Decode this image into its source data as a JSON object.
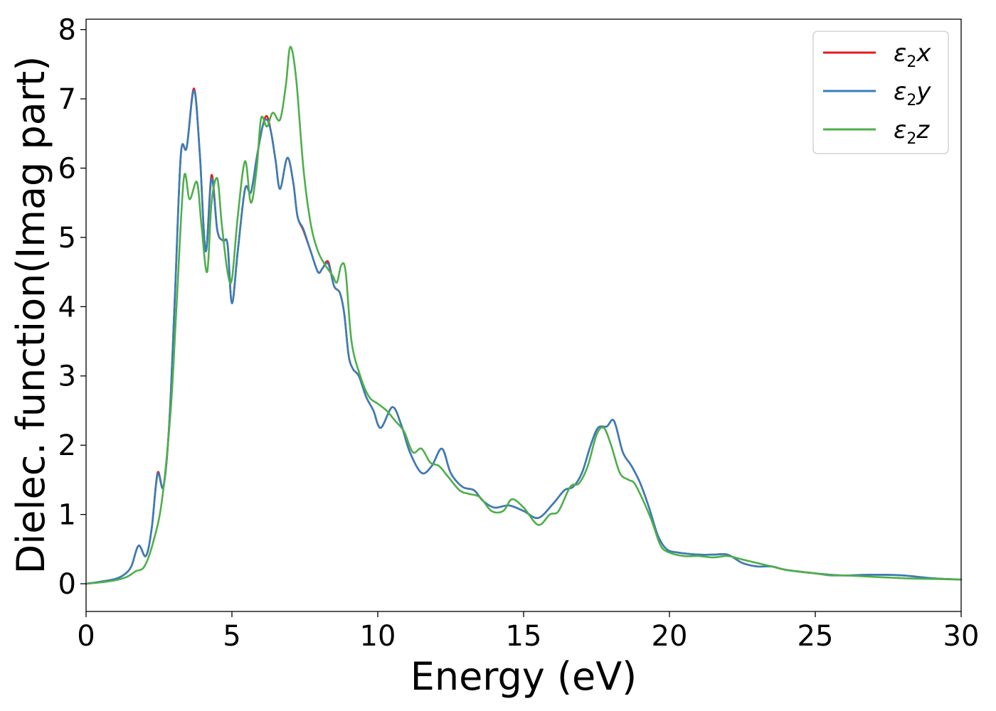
{
  "chart_data": {
    "type": "line",
    "xlabel": "Energy (eV)",
    "ylabel": "Dielec. function(Imag part)",
    "xlim": [
      0,
      30
    ],
    "ylim": [
      -0.4,
      8.15
    ],
    "xticks": [
      0,
      5,
      10,
      15,
      20,
      25,
      30
    ],
    "yticks": [
      0,
      1,
      2,
      3,
      4,
      5,
      6,
      7,
      8
    ],
    "grid": false,
    "legend_position": "top-right",
    "series": [
      {
        "name": "ε2x",
        "name_base": "ε",
        "name_sub": "2",
        "name_suffix": "x",
        "color": "#e41a1c",
        "x": [
          0,
          0.5,
          1.0,
          1.3,
          1.55,
          1.8,
          2.05,
          2.25,
          2.45,
          2.65,
          2.85,
          3.05,
          3.25,
          3.45,
          3.7,
          3.9,
          4.1,
          4.3,
          4.5,
          4.7,
          4.85,
          5.0,
          5.2,
          5.45,
          5.65,
          5.85,
          6.05,
          6.2,
          6.35,
          6.5,
          6.65,
          6.9,
          7.1,
          7.25,
          7.45,
          7.7,
          7.95,
          8.1,
          8.3,
          8.5,
          8.7,
          8.85,
          9.0,
          9.15,
          9.35,
          9.6,
          9.85,
          10.1,
          10.5,
          10.8,
          11.1,
          11.5,
          11.85,
          12.2,
          12.5,
          12.9,
          13.3,
          13.6,
          14.0,
          14.5,
          15.0,
          15.5,
          16.0,
          16.4,
          16.7,
          17.0,
          17.3,
          17.55,
          17.85,
          18.1,
          18.4,
          18.7,
          19.0,
          19.3,
          19.6,
          19.9,
          20.3,
          21.0,
          21.5,
          22.0,
          22.5,
          23.0,
          23.5,
          24.0,
          25.0,
          25.5,
          26.0,
          27.0,
          28.0,
          29.0,
          30.0
        ],
        "y": [
          0.0,
          0.03,
          0.07,
          0.13,
          0.25,
          0.55,
          0.4,
          0.8,
          1.6,
          1.4,
          2.3,
          4.2,
          6.2,
          6.3,
          7.15,
          6.2,
          4.8,
          5.9,
          5.1,
          4.95,
          4.9,
          4.05,
          4.8,
          5.7,
          5.65,
          6.15,
          6.6,
          6.75,
          6.5,
          6.1,
          5.7,
          6.15,
          5.8,
          5.3,
          5.1,
          4.8,
          4.5,
          4.55,
          4.65,
          4.3,
          4.2,
          3.9,
          3.3,
          3.1,
          3.0,
          2.7,
          2.5,
          2.25,
          2.55,
          2.3,
          1.9,
          1.6,
          1.7,
          1.95,
          1.6,
          1.4,
          1.35,
          1.2,
          1.1,
          1.13,
          1.05,
          0.95,
          1.15,
          1.35,
          1.4,
          1.6,
          2.0,
          2.25,
          2.27,
          2.35,
          1.9,
          1.7,
          1.45,
          1.1,
          0.7,
          0.5,
          0.45,
          0.42,
          0.42,
          0.42,
          0.3,
          0.25,
          0.25,
          0.2,
          0.15,
          0.13,
          0.12,
          0.13,
          0.12,
          0.08,
          0.06
        ]
      },
      {
        "name": "ε2y",
        "name_base": "ε",
        "name_sub": "2",
        "name_suffix": "y",
        "color": "#377eb8",
        "x": [
          0,
          0.5,
          1.0,
          1.3,
          1.55,
          1.8,
          2.05,
          2.25,
          2.45,
          2.65,
          2.85,
          3.05,
          3.25,
          3.45,
          3.7,
          3.9,
          4.1,
          4.3,
          4.5,
          4.7,
          4.85,
          5.0,
          5.2,
          5.45,
          5.65,
          5.85,
          6.05,
          6.2,
          6.35,
          6.5,
          6.65,
          6.9,
          7.1,
          7.25,
          7.45,
          7.7,
          7.95,
          8.1,
          8.3,
          8.5,
          8.7,
          8.85,
          9.0,
          9.15,
          9.35,
          9.6,
          9.85,
          10.1,
          10.5,
          10.8,
          11.1,
          11.5,
          11.85,
          12.2,
          12.5,
          12.9,
          13.3,
          13.6,
          14.0,
          14.5,
          15.0,
          15.5,
          16.0,
          16.4,
          16.7,
          17.0,
          17.3,
          17.55,
          17.85,
          18.1,
          18.4,
          18.7,
          19.0,
          19.3,
          19.6,
          19.9,
          20.3,
          21.0,
          21.5,
          22.0,
          22.5,
          23.0,
          23.5,
          24.0,
          25.0,
          25.5,
          26.0,
          27.0,
          28.0,
          29.0,
          30.0
        ],
        "y": [
          0.0,
          0.03,
          0.07,
          0.13,
          0.25,
          0.55,
          0.4,
          0.8,
          1.58,
          1.4,
          2.3,
          4.2,
          6.2,
          6.3,
          7.12,
          6.2,
          4.8,
          5.85,
          5.1,
          4.95,
          4.9,
          4.05,
          4.8,
          5.7,
          5.65,
          6.15,
          6.6,
          6.7,
          6.5,
          6.1,
          5.7,
          6.15,
          5.8,
          5.3,
          5.12,
          4.8,
          4.5,
          4.55,
          4.62,
          4.3,
          4.2,
          3.9,
          3.3,
          3.1,
          3.0,
          2.7,
          2.5,
          2.25,
          2.55,
          2.3,
          1.9,
          1.6,
          1.7,
          1.95,
          1.6,
          1.4,
          1.35,
          1.2,
          1.1,
          1.13,
          1.05,
          0.95,
          1.15,
          1.35,
          1.4,
          1.6,
          2.0,
          2.25,
          2.27,
          2.35,
          1.9,
          1.7,
          1.45,
          1.1,
          0.7,
          0.5,
          0.45,
          0.42,
          0.42,
          0.42,
          0.3,
          0.25,
          0.25,
          0.2,
          0.15,
          0.13,
          0.12,
          0.13,
          0.12,
          0.08,
          0.06
        ]
      },
      {
        "name": "ε2z",
        "name_base": "ε",
        "name_sub": "2",
        "name_suffix": "z",
        "color": "#4daf4a",
        "x": [
          0,
          0.5,
          1.0,
          1.4,
          1.7,
          2.0,
          2.3,
          2.6,
          2.9,
          3.1,
          3.35,
          3.55,
          3.8,
          3.95,
          4.15,
          4.3,
          4.5,
          4.65,
          4.85,
          5.0,
          5.2,
          5.45,
          5.65,
          5.85,
          6.0,
          6.2,
          6.4,
          6.65,
          6.85,
          7.0,
          7.2,
          7.45,
          7.7,
          7.95,
          8.2,
          8.45,
          8.6,
          8.75,
          8.9,
          9.1,
          9.4,
          9.7,
          10.0,
          10.3,
          10.6,
          10.9,
          11.2,
          11.5,
          11.8,
          12.1,
          12.4,
          12.8,
          13.1,
          13.5,
          13.9,
          14.3,
          14.6,
          15.0,
          15.5,
          15.9,
          16.2,
          16.6,
          16.9,
          17.2,
          17.5,
          17.75,
          18.0,
          18.3,
          18.6,
          18.8,
          19.1,
          19.4,
          19.7,
          20.0,
          20.5,
          21.0,
          21.5,
          22.0,
          22.5,
          23.0,
          23.5,
          24.0,
          25.0,
          25.5,
          26.0,
          27.0,
          28.0,
          29.0,
          30.0
        ],
        "y": [
          0.0,
          0.02,
          0.05,
          0.1,
          0.18,
          0.25,
          0.6,
          1.2,
          2.5,
          4.0,
          5.85,
          5.55,
          5.8,
          5.2,
          4.5,
          5.5,
          5.85,
          5.2,
          4.5,
          4.4,
          5.3,
          6.1,
          5.5,
          6.0,
          6.72,
          6.6,
          6.8,
          6.7,
          7.2,
          7.75,
          7.3,
          6.0,
          5.2,
          4.8,
          4.6,
          4.45,
          4.35,
          4.6,
          4.5,
          3.5,
          3.0,
          2.7,
          2.6,
          2.5,
          2.35,
          2.2,
          1.9,
          1.95,
          1.75,
          1.7,
          1.55,
          1.35,
          1.3,
          1.25,
          1.05,
          1.05,
          1.22,
          1.1,
          0.85,
          1.0,
          1.05,
          1.4,
          1.45,
          1.7,
          2.15,
          2.25,
          2.0,
          1.6,
          1.5,
          1.45,
          1.2,
          0.9,
          0.55,
          0.45,
          0.4,
          0.4,
          0.38,
          0.4,
          0.35,
          0.3,
          0.25,
          0.2,
          0.15,
          0.12,
          0.12,
          0.1,
          0.08,
          0.07,
          0.06
        ]
      }
    ]
  }
}
